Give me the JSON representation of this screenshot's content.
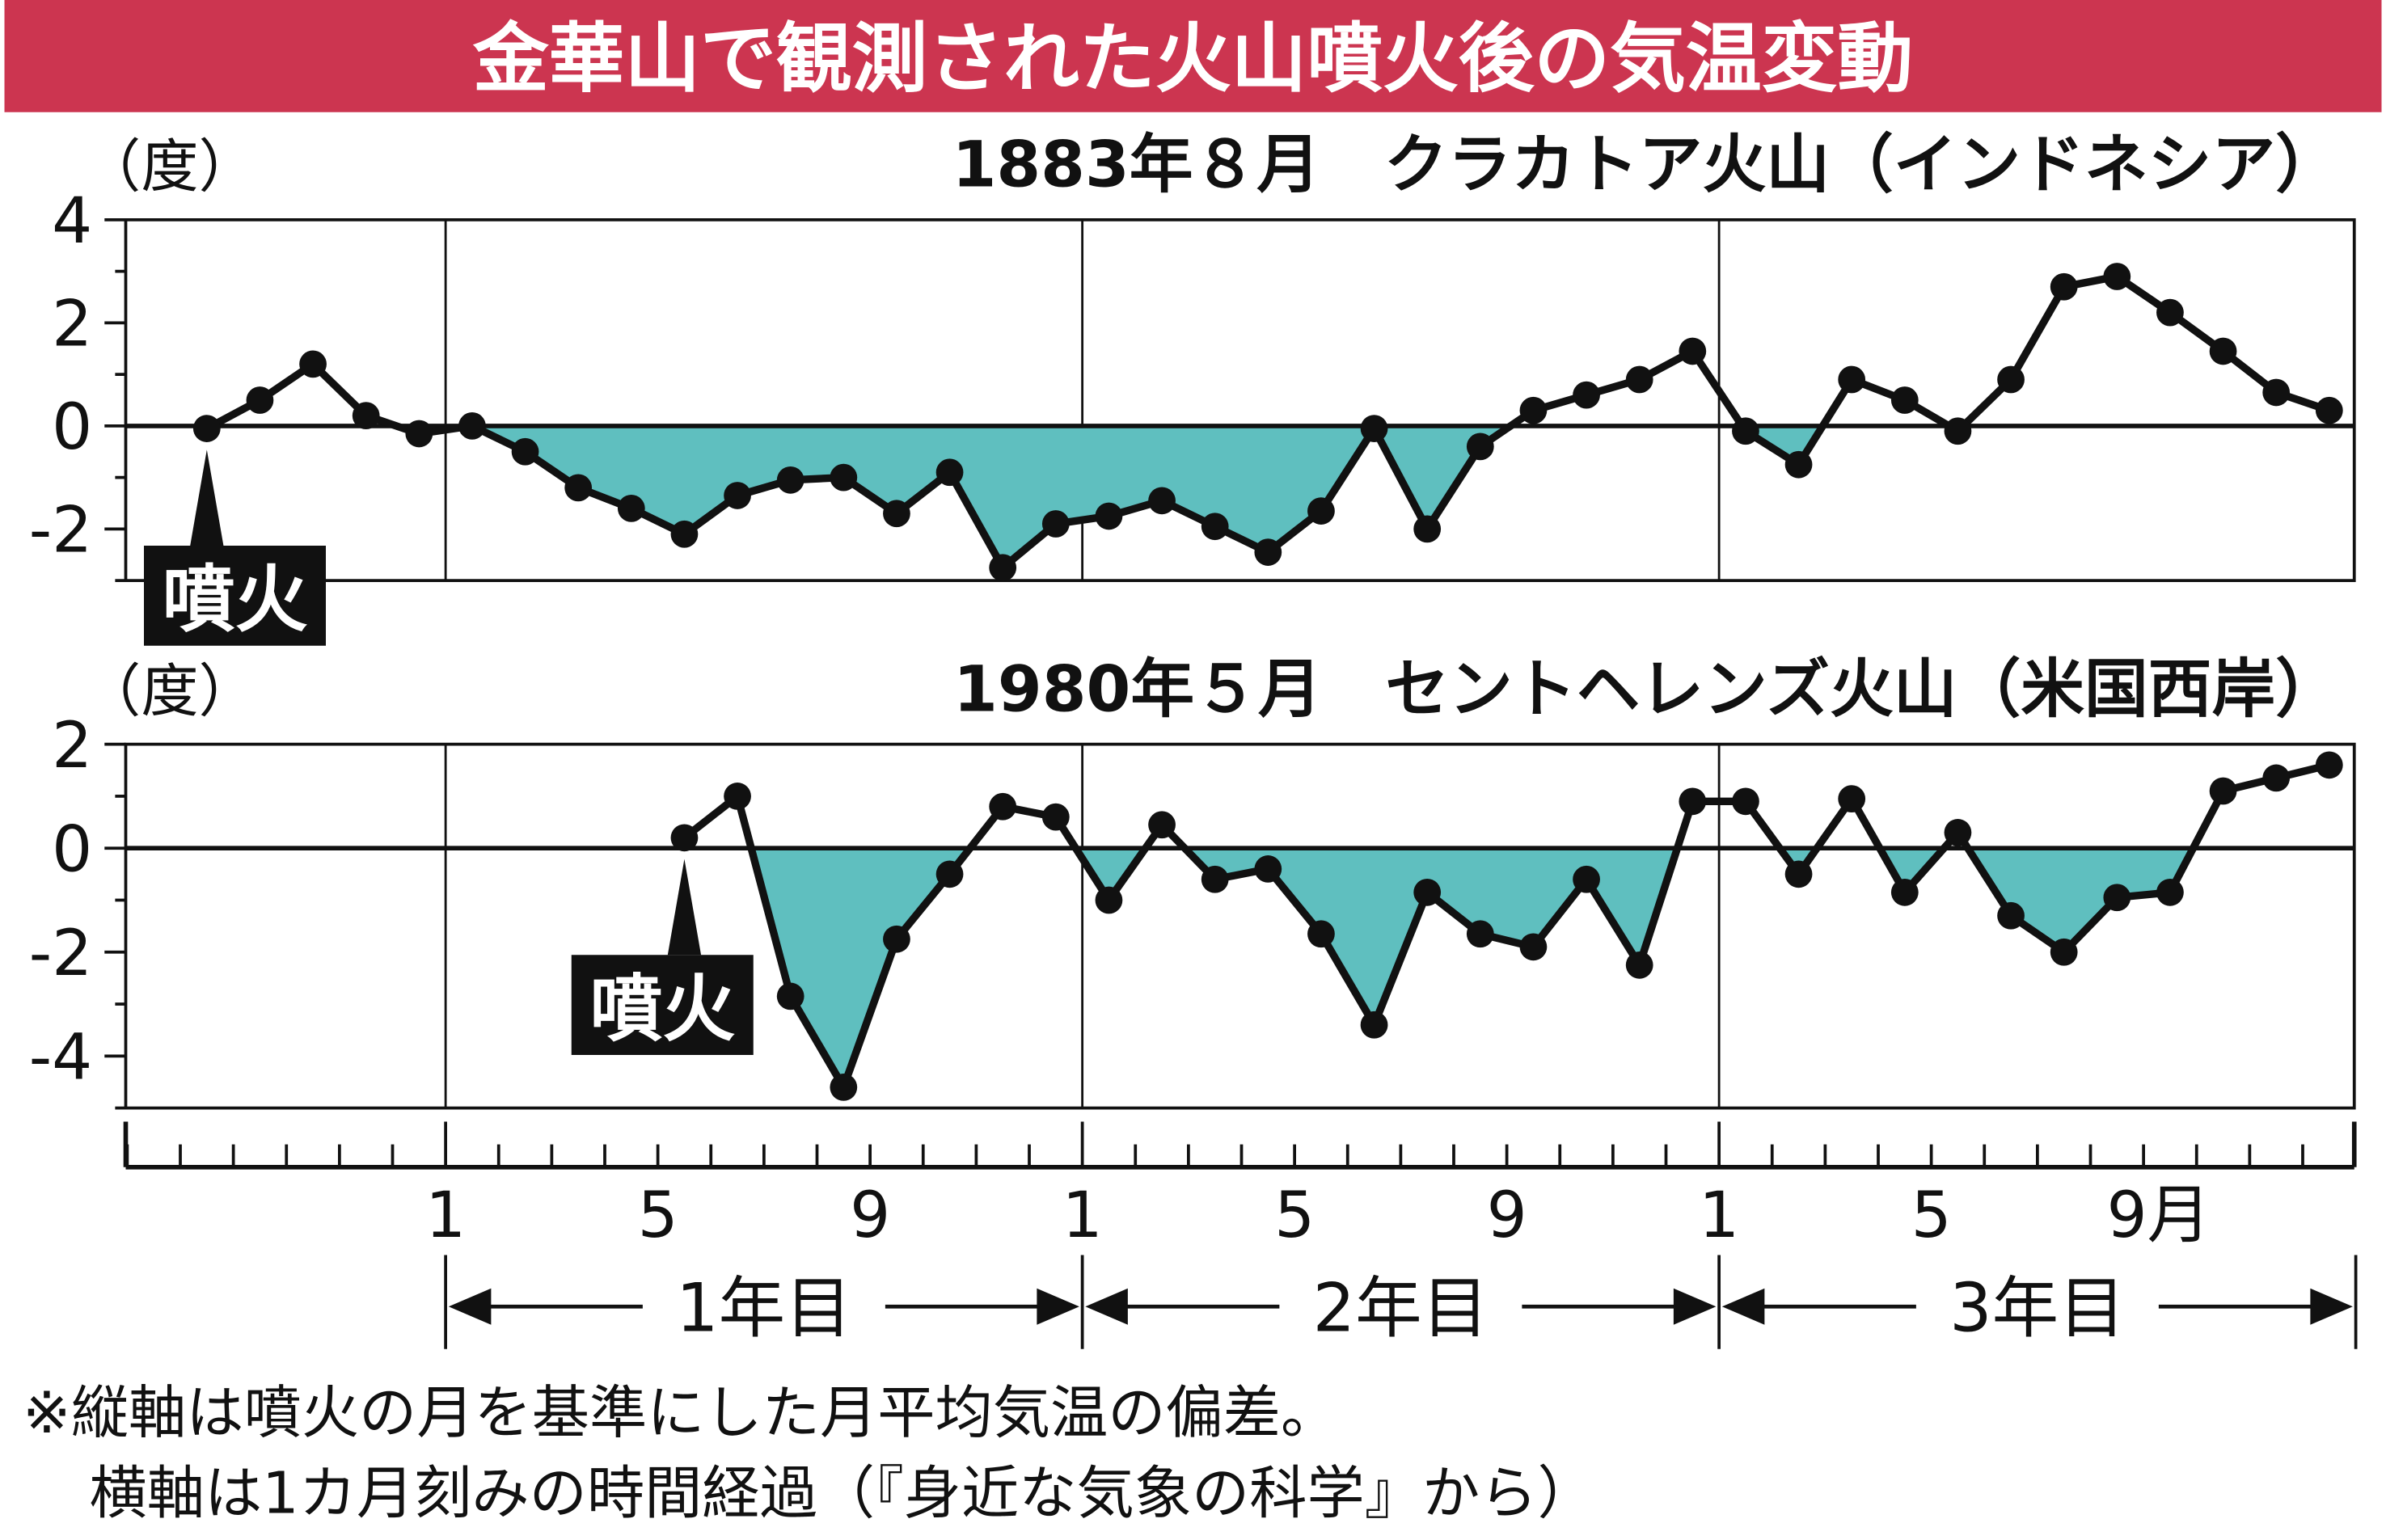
{
  "title": "金華山で観測された火山噴火後の気温変動",
  "colors": {
    "title_bar": "#cc3550",
    "fill": "#5fbfbf",
    "line": "#111111"
  },
  "eruption_label": "噴火",
  "unit_label": "（度）",
  "x_tick_labels": [
    "1",
    "5",
    "9",
    "1",
    "5",
    "9",
    "1",
    "5",
    "9月"
  ],
  "year_labels": [
    "1年目",
    "2年目",
    "3年目"
  ],
  "notes": [
    "※縦軸は噴火の月を基準にした月平均気温の偏差。",
    "横軸は1カ月刻みの時間経過（『身近な気象の科学』から）"
  ],
  "chart_data": [
    {
      "type": "line",
      "title": "1883年８月　クラカトア火山（インドネシア）",
      "ylabel": "（度）",
      "ylim": [
        -3,
        4
      ],
      "yticks": [
        "4",
        "2",
        "0",
        "-2"
      ],
      "eruption_point": "0-8",
      "x": [
        "0-8",
        "0-9",
        "0-10",
        "0-11",
        "0-12",
        "1-1",
        "1-2",
        "1-3",
        "1-4",
        "1-5",
        "1-6",
        "1-7",
        "1-8",
        "1-9",
        "1-10",
        "1-11",
        "1-12",
        "2-1",
        "2-2",
        "2-3",
        "2-4",
        "2-5",
        "2-6",
        "2-7",
        "2-8",
        "2-9",
        "2-10",
        "2-11",
        "2-12",
        "3-1",
        "3-2",
        "3-3",
        "3-4",
        "3-5",
        "3-6",
        "3-7",
        "3-8",
        "3-9",
        "3-10",
        "3-11",
        "3-12"
      ],
      "values": [
        -0.05,
        0.5,
        1.2,
        0.2,
        -0.15,
        0.0,
        -0.5,
        -1.2,
        -1.6,
        -2.1,
        -1.35,
        -1.05,
        -1.0,
        -1.7,
        -0.9,
        -2.75,
        -1.9,
        -1.75,
        -1.45,
        -1.95,
        -2.45,
        -1.65,
        -0.05,
        -2.0,
        -0.4,
        0.3,
        0.6,
        0.9,
        1.45,
        -0.1,
        -0.75,
        0.9,
        0.5,
        -0.1,
        0.9,
        2.7,
        2.9,
        2.2,
        1.45,
        0.65,
        0.3
      ]
    },
    {
      "type": "line",
      "title": "1980年５月　セントヘレンズ火山（米国西岸）",
      "ylabel": "（度）",
      "ylim": [
        -5,
        2
      ],
      "yticks": [
        "2",
        "0",
        "-2",
        "-4"
      ],
      "eruption_point": "1-5",
      "x": [
        "1-5",
        "1-6",
        "1-7",
        "1-8",
        "1-9",
        "1-10",
        "1-11",
        "1-12",
        "2-1",
        "2-2",
        "2-3",
        "2-4",
        "2-5",
        "2-6",
        "2-7",
        "2-8",
        "2-9",
        "2-10",
        "2-11",
        "2-12",
        "3-1",
        "3-2",
        "3-3",
        "3-4",
        "3-5",
        "3-6",
        "3-7",
        "3-8",
        "3-9",
        "3-10",
        "3-11",
        "3-12"
      ],
      "values": [
        0.2,
        1.0,
        -2.85,
        -4.6,
        -1.75,
        -0.5,
        0.8,
        0.6,
        -1.0,
        0.45,
        -0.6,
        -0.4,
        -1.65,
        -3.4,
        -0.85,
        -1.65,
        -1.9,
        -0.6,
        -2.25,
        0.9,
        0.9,
        -0.5,
        0.95,
        -0.85,
        0.3,
        -1.3,
        -2.0,
        -0.95,
        -0.85,
        1.1,
        1.35,
        1.6
      ]
    }
  ]
}
